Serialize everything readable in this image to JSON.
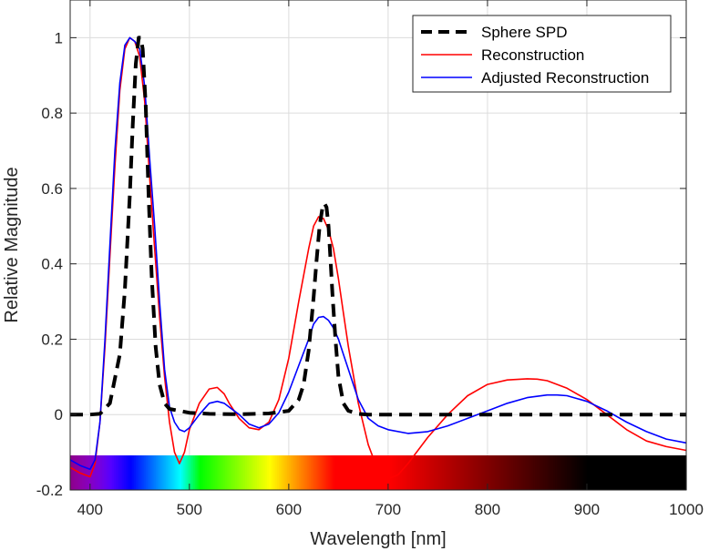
{
  "chart_data": {
    "type": "line",
    "xlabel": "Wavelength [nm]",
    "ylabel": "Relative Magnitude",
    "xlim": [
      380,
      1000
    ],
    "ylim": [
      -0.2,
      1.1
    ],
    "grid": true,
    "legend_position": "top-right",
    "x_ticks": [
      400,
      500,
      600,
      700,
      800,
      900,
      1000
    ],
    "y_ticks": [
      -0.2,
      0,
      0.2,
      0.4,
      0.6,
      0.8,
      1
    ],
    "x_tick_labels": [
      "400",
      "500",
      "600",
      "700",
      "800",
      "900",
      "1000"
    ],
    "y_tick_labels": [
      "-0.2",
      "0",
      "0.2",
      "0.4",
      "0.6",
      "0.8",
      "1"
    ],
    "spectrum_bar": true,
    "series": [
      {
        "name": "Sphere SPD",
        "color": "#000000",
        "style": "dashed",
        "x": [
          380,
          400,
          410,
          420,
          430,
          435,
          440,
          443,
          446,
          449,
          451,
          453,
          456,
          459,
          462,
          466,
          470,
          475,
          480,
          490,
          500,
          520,
          550,
          580,
          600,
          610,
          615,
          620,
          625,
          628,
          631,
          634,
          636,
          638,
          640,
          642,
          644,
          647,
          650,
          655,
          660,
          670,
          680,
          700,
          800,
          900,
          1000
        ],
        "y": [
          0,
          0,
          0.002,
          0.03,
          0.16,
          0.33,
          0.58,
          0.77,
          0.93,
          1.0,
          1.0,
          0.97,
          0.82,
          0.58,
          0.37,
          0.18,
          0.08,
          0.03,
          0.015,
          0.01,
          0.005,
          0.002,
          0.001,
          0.003,
          0.01,
          0.04,
          0.08,
          0.17,
          0.31,
          0.41,
          0.5,
          0.55,
          0.56,
          0.55,
          0.5,
          0.41,
          0.32,
          0.2,
          0.1,
          0.03,
          0.01,
          0.002,
          0,
          0,
          0,
          0,
          0
        ]
      },
      {
        "name": "Reconstruction",
        "color": "#ff0000",
        "style": "solid",
        "x": [
          380,
          390,
          400,
          405,
          410,
          415,
          420,
          425,
          430,
          435,
          440,
          445,
          450,
          455,
          460,
          465,
          470,
          475,
          480,
          485,
          490,
          495,
          500,
          510,
          520,
          528,
          535,
          540,
          550,
          560,
          570,
          580,
          590,
          600,
          610,
          620,
          625,
          630,
          635,
          640,
          645,
          650,
          655,
          660,
          670,
          680,
          690,
          700,
          710,
          720,
          740,
          760,
          780,
          800,
          820,
          840,
          850,
          860,
          880,
          900,
          920,
          940,
          960,
          980,
          1000
        ],
        "y": [
          -0.14,
          -0.155,
          -0.165,
          -0.13,
          -0.02,
          0.18,
          0.42,
          0.66,
          0.86,
          0.97,
          1.0,
          0.99,
          0.95,
          0.83,
          0.63,
          0.44,
          0.26,
          0.1,
          -0.02,
          -0.1,
          -0.13,
          -0.1,
          -0.04,
          0.03,
          0.068,
          0.072,
          0.055,
          0.03,
          -0.01,
          -0.035,
          -0.04,
          -0.02,
          0.04,
          0.15,
          0.3,
          0.44,
          0.5,
          0.525,
          0.52,
          0.49,
          0.44,
          0.36,
          0.27,
          0.18,
          0.03,
          -0.08,
          -0.15,
          -0.17,
          -0.16,
          -0.13,
          -0.06,
          0.0,
          0.05,
          0.08,
          0.092,
          0.095,
          0.094,
          0.09,
          0.07,
          0.04,
          0.0,
          -0.04,
          -0.07,
          -0.085,
          -0.095
        ]
      },
      {
        "name": "Adjusted Reconstruction",
        "color": "#0000ff",
        "style": "solid",
        "x": [
          380,
          390,
          400,
          405,
          410,
          415,
          420,
          425,
          430,
          435,
          440,
          445,
          450,
          455,
          460,
          465,
          470,
          475,
          480,
          485,
          490,
          495,
          500,
          510,
          520,
          528,
          535,
          540,
          550,
          560,
          570,
          580,
          590,
          600,
          610,
          620,
          625,
          630,
          635,
          640,
          645,
          650,
          655,
          660,
          670,
          680,
          690,
          700,
          720,
          740,
          760,
          780,
          800,
          820,
          840,
          860,
          870,
          880,
          900,
          920,
          940,
          960,
          980,
          1000
        ],
        "y": [
          -0.12,
          -0.135,
          -0.145,
          -0.12,
          -0.02,
          0.2,
          0.45,
          0.7,
          0.88,
          0.98,
          1.0,
          0.99,
          0.97,
          0.87,
          0.68,
          0.5,
          0.3,
          0.12,
          0.02,
          -0.02,
          -0.04,
          -0.045,
          -0.035,
          0.0,
          0.03,
          0.035,
          0.03,
          0.02,
          0.0,
          -0.025,
          -0.035,
          -0.025,
          0.005,
          0.06,
          0.13,
          0.2,
          0.24,
          0.258,
          0.26,
          0.25,
          0.23,
          0.2,
          0.16,
          0.12,
          0.04,
          -0.01,
          -0.03,
          -0.04,
          -0.05,
          -0.045,
          -0.03,
          -0.01,
          0.01,
          0.03,
          0.045,
          0.052,
          0.052,
          0.05,
          0.035,
          0.01,
          -0.02,
          -0.045,
          -0.065,
          -0.075
        ]
      }
    ]
  }
}
